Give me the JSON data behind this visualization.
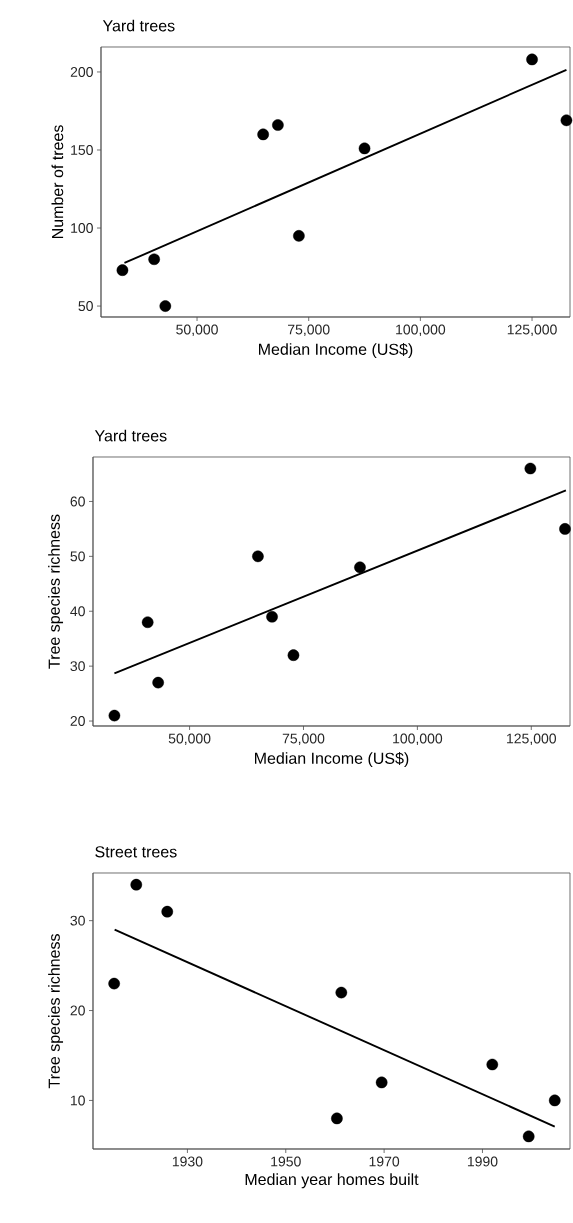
{
  "chart_data": [
    {
      "type": "scatter",
      "title": "Yard trees",
      "xlabel": "Median Income (US$)",
      "ylabel": "Number of trees",
      "xlim": [
        28500,
        133500
      ],
      "ylim": [
        43,
        216
      ],
      "xticks": [
        {
          "value": 50000,
          "label": "50,000"
        },
        {
          "value": 75000,
          "label": "75,000"
        },
        {
          "value": 100000,
          "label": "100,000"
        },
        {
          "value": 125000,
          "label": "125,000"
        }
      ],
      "yticks": [
        50,
        100,
        150,
        200
      ],
      "series": [
        {
          "marker": "circle",
          "color": "#000000",
          "x": [
            33300,
            40400,
            42900,
            64800,
            68100,
            72800,
            87500,
            125000,
            132700
          ],
          "values": [
            73,
            80,
            50,
            160,
            166,
            95,
            151,
            208,
            169
          ]
        },
        {
          "type": "line",
          "marker": "none",
          "color": "#000000",
          "x": [
            33750,
            132700
          ],
          "values": [
            77.6,
            201.4
          ]
        }
      ]
    },
    {
      "type": "scatter",
      "title": "Yard trees",
      "xlabel": "Median Income (US$)",
      "ylabel": "Tree species richness",
      "xlim": [
        28800,
        133500
      ],
      "ylim": [
        19.1,
        68.1
      ],
      "xticks": [
        {
          "value": 50000,
          "label": "50,000"
        },
        {
          "value": 75000,
          "label": "75,000"
        },
        {
          "value": 100000,
          "label": "100,000"
        },
        {
          "value": 125000,
          "label": "125,000"
        }
      ],
      "yticks": [
        20,
        30,
        40,
        50,
        60
      ],
      "series": [
        {
          "marker": "circle",
          "color": "#000000",
          "x": [
            33500,
            40800,
            43100,
            65000,
            68100,
            72800,
            87400,
            124800,
            132400
          ],
          "values": [
            21,
            38,
            27,
            50,
            39,
            32,
            48,
            66,
            55
          ]
        },
        {
          "type": "line",
          "marker": "none",
          "color": "#000000",
          "x": [
            33500,
            132600
          ],
          "values": [
            28.7,
            62.0
          ]
        }
      ]
    },
    {
      "type": "scatter",
      "title": "Street trees",
      "xlabel": "Median year homes built",
      "ylabel": "Tree species richness",
      "xlim": [
        1910.8,
        2007.8
      ],
      "ylim": [
        4.6,
        35.3
      ],
      "xticks": [
        1930,
        1950,
        1970,
        1990
      ],
      "yticks": [
        10,
        20,
        30
      ],
      "series": [
        {
          "marker": "circle",
          "color": "#000000",
          "x": [
            1915.1,
            1919.6,
            1925.9,
            1960.4,
            1961.3,
            1969.5,
            1992.0,
            1999.4,
            2004.7
          ],
          "values": [
            23,
            34,
            31,
            8,
            22,
            12,
            14,
            6,
            10
          ]
        },
        {
          "type": "line",
          "marker": "none",
          "color": "#000000",
          "x": [
            1915.2,
            2004.7
          ],
          "values": [
            29.0,
            7.1
          ]
        }
      ]
    }
  ]
}
